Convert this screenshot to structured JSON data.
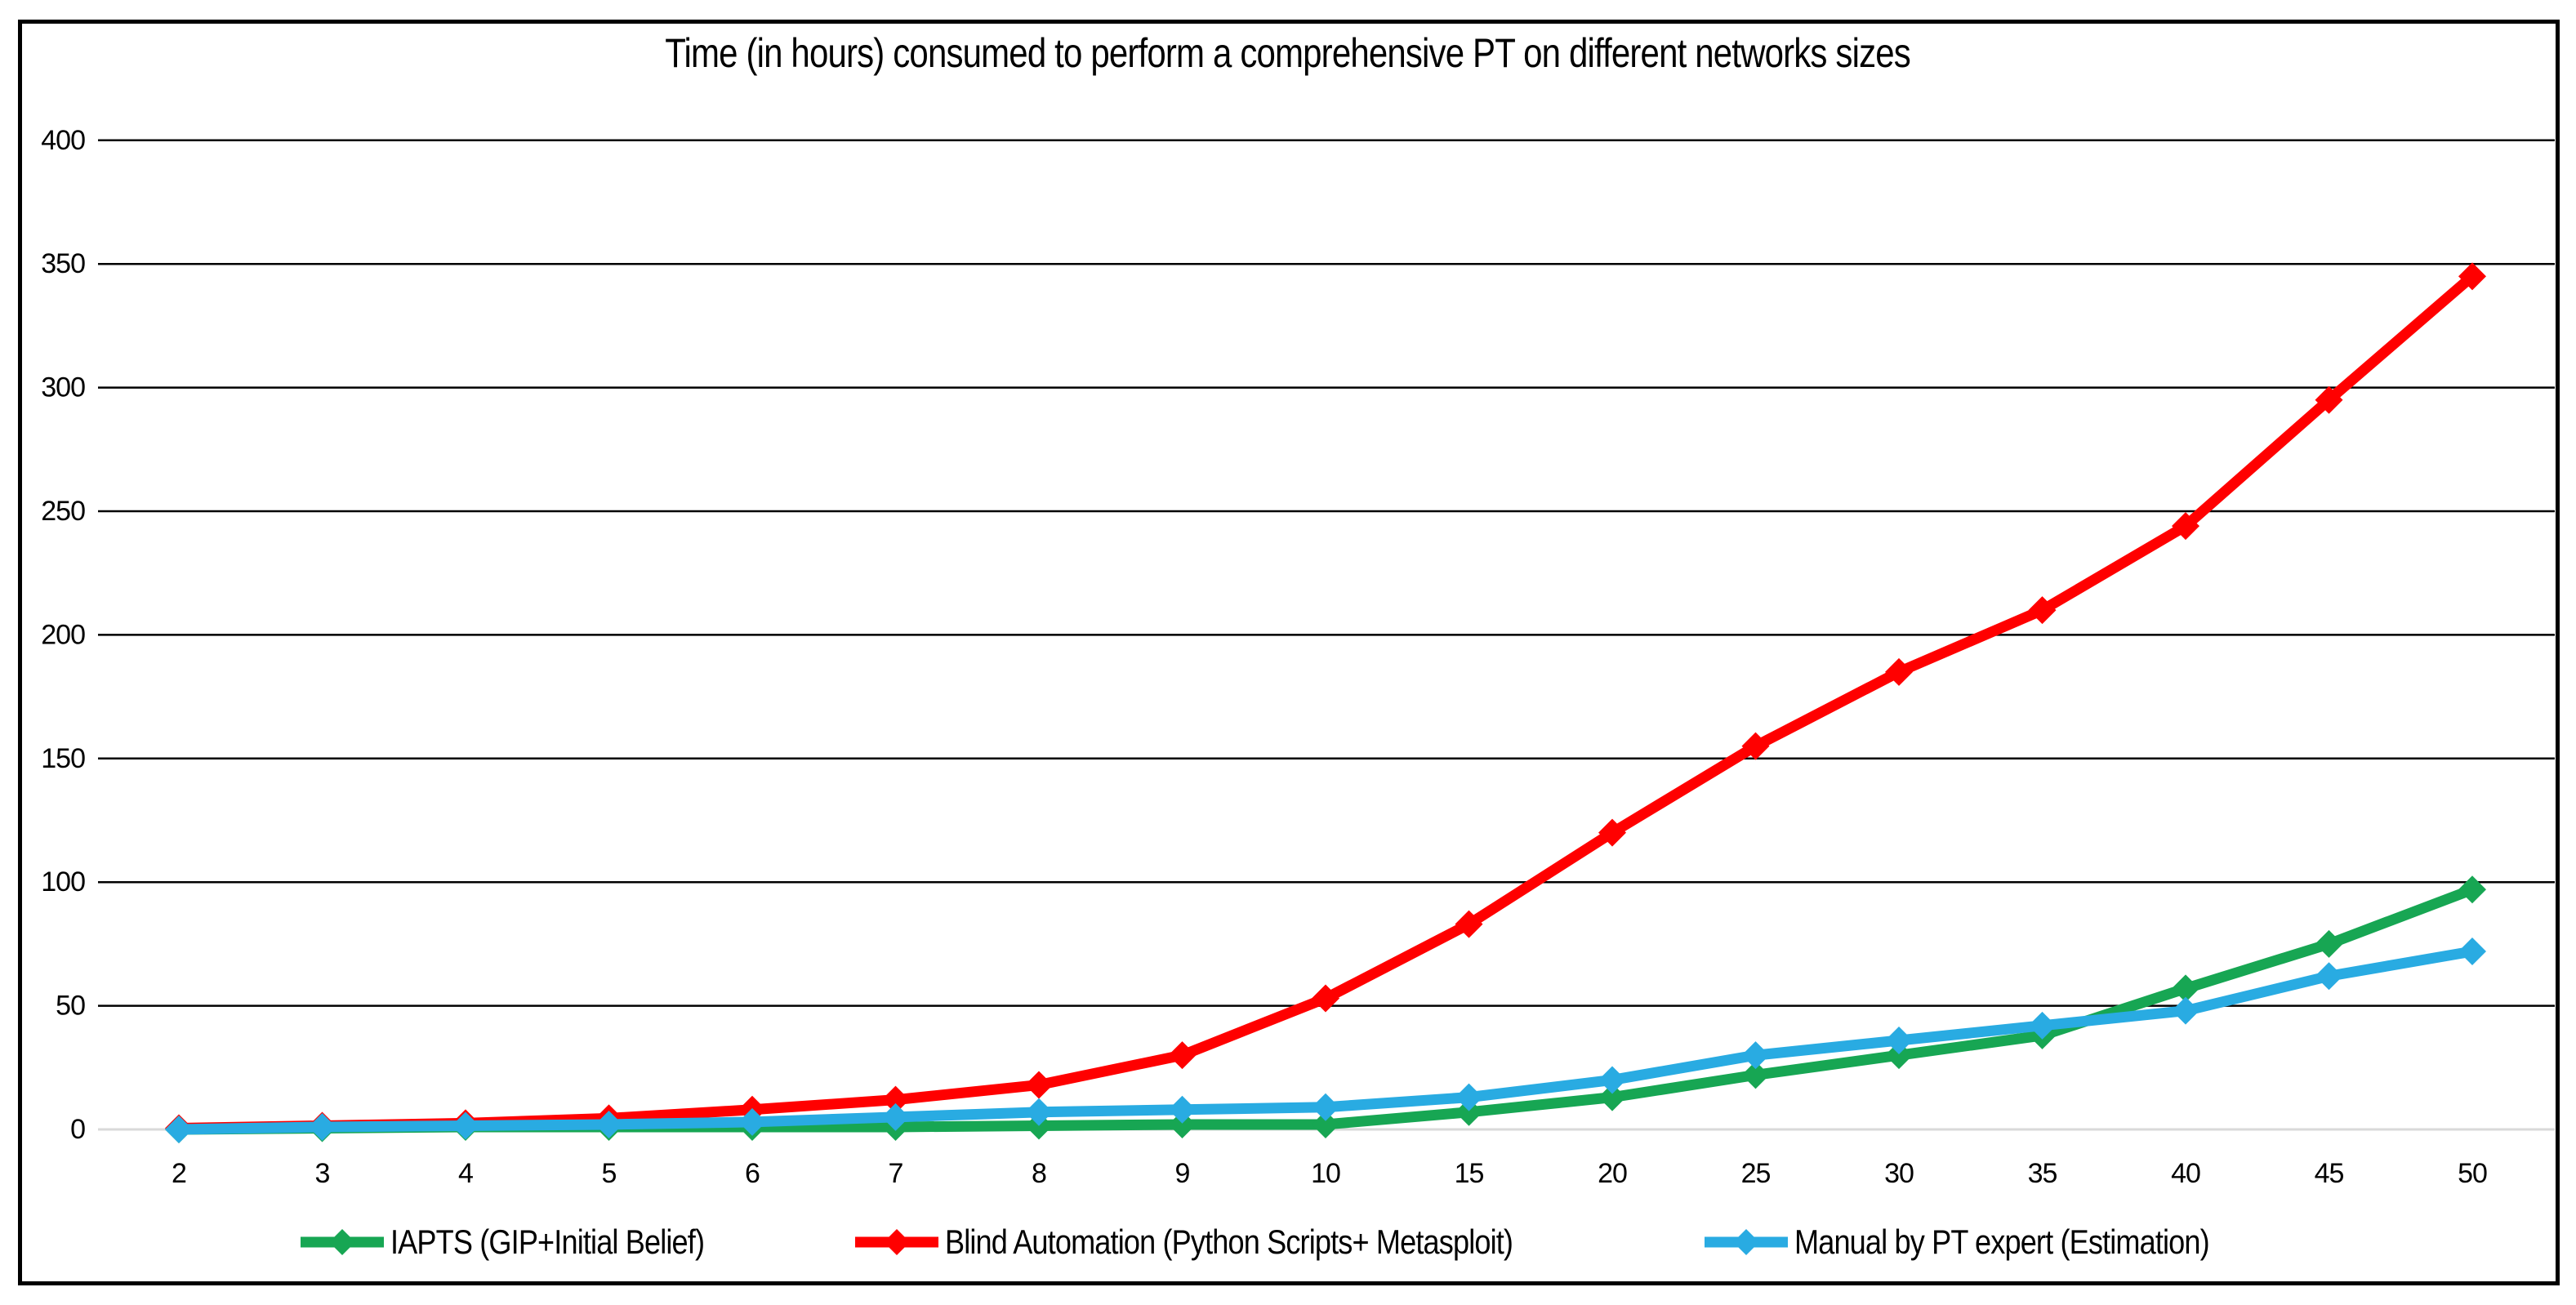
{
  "title": "Time (in hours) consumed to perform a comprehensive PT on different networks sizes",
  "chart_data": {
    "type": "line",
    "title": "Time (in hours) consumed to perform a comprehensive PT on different networks sizes",
    "xlabel": "",
    "ylabel": "",
    "categories": [
      "2",
      "3",
      "4",
      "5",
      "6",
      "7",
      "8",
      "9",
      "10",
      "15",
      "20",
      "25",
      "30",
      "35",
      "40",
      "45",
      "50"
    ],
    "series": [
      {
        "name": "IAPTS (GIP+Initial Belief)",
        "color": "#17A653",
        "marker": "diamond",
        "values": [
          0,
          0.5,
          1,
          1,
          1,
          1,
          1.5,
          2,
          2,
          7,
          13,
          22,
          30,
          38,
          57,
          75,
          97
        ]
      },
      {
        "name": "Blind Automation (Python Scripts+ Metasploit)",
        "color": "#FF0000",
        "marker": "diamond",
        "values": [
          0.5,
          1.5,
          2.5,
          4.5,
          8,
          12,
          18,
          30,
          53,
          83,
          120,
          155,
          185,
          210,
          244,
          295,
          345
        ]
      },
      {
        "name": "Manual by PT expert (Estimation)",
        "color": "#29ABE2",
        "marker": "diamond",
        "values": [
          0,
          1,
          1.5,
          2,
          3,
          5,
          7,
          8,
          9,
          13,
          20,
          30,
          36,
          42,
          48,
          62,
          72
        ]
      }
    ],
    "ylim": [
      0,
      400
    ],
    "yticks": [
      "0",
      "50",
      "100",
      "150",
      "200",
      "250",
      "300",
      "350",
      "400"
    ],
    "ytick_step": 50,
    "grid": "horizontal",
    "gridline_color": "#000000",
    "zero_axis_color": "#D9D9D9",
    "text_color": "#000000",
    "legend_position": "bottom"
  }
}
